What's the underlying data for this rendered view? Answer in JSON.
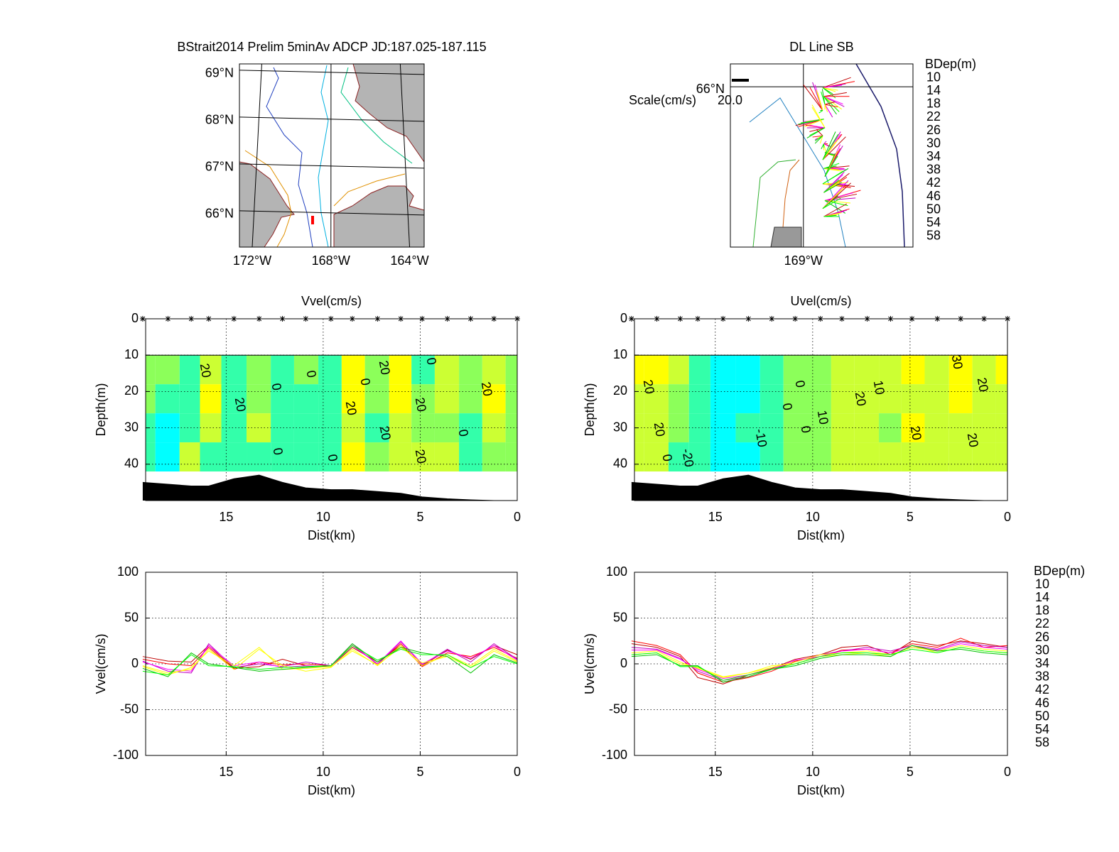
{
  "chart_data": [
    {
      "type": "map",
      "title": "BStrait2014 Prelim 5minAv ADCP JD:187.025-187.115",
      "xlim": [
        -172.65,
        -163.26
      ],
      "ylim": [
        65.27,
        69.18
      ],
      "xticks": [
        {
          "value": -172,
          "label": "172°W"
        },
        {
          "value": -168,
          "label": "168°W"
        },
        {
          "value": -164,
          "label": "164°W"
        }
      ],
      "yticks": [
        {
          "value": 69,
          "label": "69°N"
        },
        {
          "value": 68,
          "label": "68°N"
        },
        {
          "value": 67,
          "label": "67°N"
        },
        {
          "value": 66,
          "label": "66°N"
        }
      ],
      "land_color": "#b4b4b4"
    },
    {
      "type": "stickmap",
      "title": "DL Line SB",
      "xlim": [
        -169.4,
        -168.4
      ],
      "ylim": [
        65.3,
        66.1
      ],
      "xticks": [
        {
          "value": -169,
          "label": "169°W"
        }
      ],
      "yticks": [
        {
          "value": 66,
          "label": "66°N"
        }
      ],
      "scale_label": "Scale(cm/s)",
      "scale_value": {
        "value": 20,
        "label": "20.0"
      },
      "legend": {
        "title": "BDep(m)",
        "names": [
          10,
          14,
          18,
          22,
          26,
          30,
          34,
          38,
          42,
          46,
          50,
          54,
          58
        ],
        "colors": [
          "#c00000",
          "#ff0000",
          "#c000c0",
          "#ff00ff",
          "#ffff00",
          "#ffff00",
          "#00c000",
          "#00ff00",
          "#00ffff",
          "#00ffff",
          "#0000c0",
          "#000080",
          "#000000"
        ]
      }
    },
    {
      "type": "contour",
      "title": "Vvel(cm/s)",
      "xlabel": "Dist(km)",
      "ylabel": "Depth(m)",
      "xlim": [
        19.15,
        0
      ],
      "ylim": [
        0,
        50
      ],
      "yreverse": true,
      "xticks": [
        15,
        10,
        5,
        0
      ],
      "yticks": [
        0,
        10,
        20,
        30,
        40
      ],
      "grid": true,
      "x": [
        19.3,
        18.0,
        16.8,
        15.9,
        14.6,
        13.3,
        12.1,
        10.9,
        9.6,
        8.5,
        7.2,
        6.0,
        4.9,
        3.6,
        2.4,
        1.2,
        0
      ],
      "depths": [
        14,
        22,
        30,
        38
      ],
      "values": [
        [
          5,
          0,
          -2,
          18,
          -6,
          2,
          -1,
          0,
          -2,
          20,
          0,
          22,
          -3,
          12,
          8,
          18,
          6
        ],
        [
          2,
          -6,
          -8,
          20,
          -2,
          2,
          -4,
          -2,
          -3,
          20,
          0,
          25,
          0,
          14,
          6,
          20,
          4
        ],
        [
          -3,
          -12,
          -4,
          14,
          -2,
          18,
          -6,
          -5,
          -3,
          14,
          -1,
          18,
          1,
          8,
          -4,
          14,
          2
        ],
        [
          -8,
          -12,
          10,
          -2,
          -3,
          -6,
          -4,
          -3,
          -2,
          20,
          4,
          16,
          10,
          10,
          -4,
          8,
          0
        ]
      ],
      "levels": [
        -20,
        -10,
        0,
        10,
        20,
        30
      ],
      "level_colors": [
        "#00ffff",
        "#00ffff",
        "#33ffaa",
        "#8cff5a",
        "#ccff33",
        "#ffff00",
        "#ffff00"
      ],
      "bottom": [
        45,
        45.5,
        46,
        46,
        44,
        43,
        45,
        46.5,
        47,
        47,
        47.5,
        48,
        49,
        49.5,
        49.8,
        50,
        50
      ],
      "bottom_color": "#000000",
      "contour_labels": [
        20,
        0,
        0,
        20,
        0,
        0,
        20,
        0,
        20,
        20,
        20,
        20,
        0,
        0,
        20
      ]
    },
    {
      "type": "contour",
      "title": "Uvel(cm/s)",
      "xlabel": "Dist(km)",
      "ylabel": "Depth(m)",
      "xlim": [
        19.15,
        0
      ],
      "ylim": [
        0,
        50
      ],
      "yreverse": true,
      "xticks": [
        15,
        10,
        5,
        0
      ],
      "yticks": [
        0,
        10,
        20,
        30,
        40
      ],
      "grid": true,
      "x": [
        19.3,
        18.0,
        16.8,
        15.9,
        14.6,
        13.3,
        12.1,
        10.9,
        9.6,
        8.5,
        7.2,
        6.0,
        4.9,
        3.6,
        2.4,
        1.2,
        0
      ],
      "depths": [
        14,
        22,
        30,
        38
      ],
      "values": [
        [
          25,
          20,
          10,
          -10,
          -20,
          -15,
          -8,
          3,
          8,
          15,
          16,
          12,
          22,
          18,
          28,
          18,
          20
        ],
        [
          15,
          15,
          5,
          -6,
          -16,
          -12,
          -6,
          4,
          8,
          14,
          16,
          12,
          18,
          15,
          22,
          18,
          16
        ],
        [
          10,
          12,
          0,
          -4,
          -14,
          -10,
          -2,
          0,
          8,
          10,
          12,
          8,
          20,
          12,
          18,
          14,
          12
        ],
        [
          10,
          12,
          -3,
          -3,
          -18,
          -12,
          -6,
          0,
          8,
          12,
          12,
          10,
          16,
          12,
          18,
          14,
          12
        ]
      ],
      "levels": [
        -20,
        -10,
        0,
        10,
        20,
        30
      ],
      "level_colors": [
        "#00ffff",
        "#00ffff",
        "#33ffaa",
        "#8cff5a",
        "#ccff33",
        "#ffff00",
        "#ffff00"
      ],
      "bottom": [
        45,
        45.5,
        46,
        46,
        44,
        43,
        45,
        46.5,
        47,
        47,
        47.5,
        48,
        49,
        49.5,
        49.8,
        50,
        50
      ],
      "bottom_color": "#000000",
      "contour_labels": [
        20,
        20,
        0,
        -20,
        -10,
        0,
        0,
        0,
        10,
        20,
        10,
        20,
        30,
        20,
        20
      ]
    },
    {
      "type": "line",
      "xlabel": "Dist(km)",
      "ylabel": "Vvel(cm/s)",
      "xlim": [
        19.15,
        0
      ],
      "ylim": [
        -100,
        100
      ],
      "xticks": [
        15,
        10,
        5,
        0
      ],
      "yticks": [
        -100,
        -50,
        0,
        50,
        100
      ],
      "grid": true,
      "x": [
        19.3,
        18.0,
        16.8,
        15.9,
        14.6,
        13.3,
        12.1,
        10.9,
        9.6,
        8.5,
        7.2,
        6.0,
        4.9,
        3.6,
        2.4,
        1.2,
        0
      ],
      "series": [
        {
          "name": "10",
          "color": "#c00000",
          "values": [
            8,
            3,
            2,
            20,
            -5,
            -3,
            5,
            -2,
            -3,
            18,
            2,
            20,
            -2,
            15,
            5,
            20,
            10
          ]
        },
        {
          "name": "14",
          "color": "#ff0000",
          "values": [
            5,
            0,
            -2,
            18,
            -6,
            2,
            -1,
            0,
            -2,
            20,
            0,
            22,
            -3,
            12,
            8,
            18,
            6
          ]
        },
        {
          "name": "18",
          "color": "#c000c0",
          "values": [
            3,
            -8,
            -10,
            22,
            -4,
            0,
            -3,
            2,
            -2,
            22,
            -1,
            24,
            -1,
            16,
            2,
            22,
            5
          ]
        },
        {
          "name": "22",
          "color": "#ff00ff",
          "values": [
            2,
            -6,
            -8,
            20,
            -2,
            2,
            -4,
            -2,
            -3,
            20,
            0,
            25,
            0,
            14,
            6,
            20,
            4
          ]
        },
        {
          "name": "26",
          "color": "#ffff00",
          "values": [
            -2,
            -10,
            -6,
            16,
            -6,
            16,
            -2,
            -8,
            -4,
            16,
            -2,
            20,
            -2,
            10,
            -2,
            16,
            3
          ]
        },
        {
          "name": "30",
          "color": "#ffff00",
          "values": [
            -3,
            -12,
            -4,
            14,
            -2,
            18,
            -6,
            -5,
            -3,
            14,
            -1,
            18,
            1,
            8,
            -4,
            14,
            2
          ]
        },
        {
          "name": "34",
          "color": "#00c000",
          "values": [
            -5,
            -14,
            12,
            0,
            -4,
            -8,
            -6,
            -4,
            -2,
            22,
            2,
            18,
            12,
            8,
            -10,
            10,
            1
          ]
        },
        {
          "name": "38",
          "color": "#00ff00",
          "values": [
            -8,
            -12,
            10,
            -2,
            -3,
            -6,
            -4,
            -3,
            -2,
            20,
            4,
            16,
            10,
            10,
            -4,
            8,
            0
          ]
        }
      ]
    },
    {
      "type": "line",
      "xlabel": "Dist(km)",
      "ylabel": "Uvel(cm/s)",
      "xlim": [
        19.15,
        0
      ],
      "ylim": [
        -100,
        100
      ],
      "xticks": [
        15,
        10,
        5,
        0
      ],
      "yticks": [
        -100,
        -50,
        0,
        50,
        100
      ],
      "grid": true,
      "x": [
        19.3,
        18.0,
        16.8,
        15.9,
        14.6,
        13.3,
        12.1,
        10.9,
        9.6,
        8.5,
        7.2,
        6.0,
        4.9,
        3.6,
        2.4,
        1.2,
        0
      ],
      "series": [
        {
          "name": "10",
          "color": "#c00000",
          "values": [
            22,
            18,
            8,
            -15,
            -22,
            -12,
            -5,
            5,
            10,
            18,
            20,
            10,
            25,
            20,
            25,
            22,
            18
          ]
        },
        {
          "name": "14",
          "color": "#ff0000",
          "values": [
            25,
            20,
            10,
            -10,
            -20,
            -15,
            -8,
            3,
            8,
            15,
            16,
            12,
            22,
            18,
            28,
            18,
            20
          ]
        },
        {
          "name": "18",
          "color": "#c000c0",
          "values": [
            18,
            16,
            6,
            -8,
            -18,
            -14,
            -6,
            2,
            10,
            14,
            18,
            14,
            20,
            16,
            24,
            20,
            18
          ]
        },
        {
          "name": "22",
          "color": "#ff00ff",
          "values": [
            15,
            15,
            5,
            -6,
            -16,
            -12,
            -6,
            4,
            8,
            14,
            16,
            12,
            18,
            15,
            22,
            18,
            16
          ]
        },
        {
          "name": "26",
          "color": "#ffff00",
          "values": [
            12,
            14,
            2,
            -5,
            -15,
            -10,
            -4,
            2,
            10,
            12,
            14,
            10,
            18,
            14,
            20,
            16,
            14
          ]
        },
        {
          "name": "30",
          "color": "#ffff00",
          "values": [
            10,
            12,
            0,
            -4,
            -14,
            -10,
            -2,
            0,
            8,
            10,
            12,
            8,
            20,
            12,
            18,
            14,
            12
          ]
        },
        {
          "name": "34",
          "color": "#00c000",
          "values": [
            8,
            10,
            -2,
            -2,
            -20,
            -14,
            -6,
            -2,
            6,
            10,
            10,
            8,
            20,
            14,
            16,
            12,
            10
          ]
        },
        {
          "name": "38",
          "color": "#00ff00",
          "values": [
            10,
            12,
            -3,
            -3,
            -18,
            -12,
            -6,
            0,
            8,
            12,
            12,
            10,
            16,
            12,
            18,
            14,
            12
          ]
        }
      ],
      "legend": {
        "title": "BDep(m)",
        "names": [
          10,
          14,
          18,
          22,
          26,
          30,
          34,
          38,
          42,
          46,
          50,
          54,
          58
        ],
        "colors": [
          "#c00000",
          "#ff0000",
          "#c000c0",
          "#ff00ff",
          "#ffff00",
          "#ffff00",
          "#00c000",
          "#00ff00",
          "#00ffff",
          "#00ffff",
          "#0000c0",
          "#000080",
          "#000000"
        ]
      }
    }
  ]
}
